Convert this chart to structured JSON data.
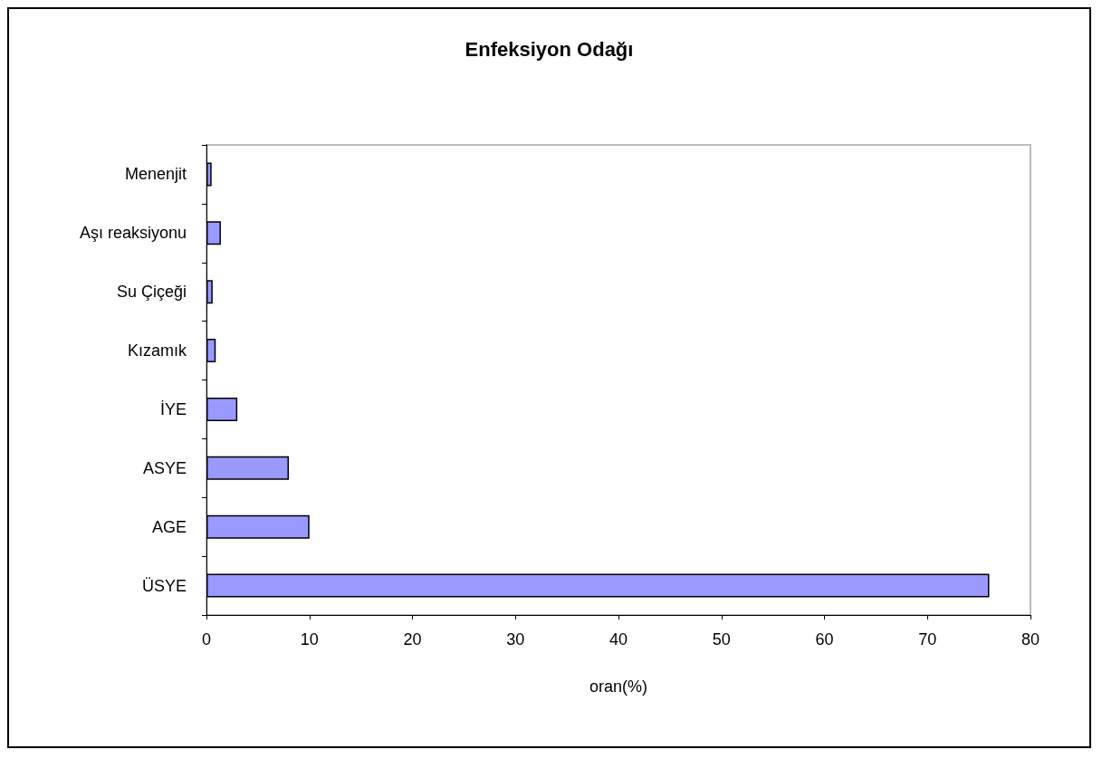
{
  "chart_data": {
    "type": "bar",
    "orientation": "horizontal",
    "title": "Enfeksiyon Odağı",
    "xlabel": "oran(%)",
    "categories": [
      "Menenjit",
      "Aşı reaksiyonu",
      "Su Çiçeği",
      "Kızamık",
      "İYE",
      "ASYE",
      "AGE",
      "ÜSYE"
    ],
    "values": [
      0.5,
      1.4,
      0.6,
      0.9,
      3,
      8,
      10,
      76
    ],
    "color": "#9999ff",
    "xlim": [
      0,
      80
    ],
    "xticks": [
      0,
      10,
      20,
      30,
      40,
      50,
      60,
      70,
      80
    ],
    "grid": false
  }
}
